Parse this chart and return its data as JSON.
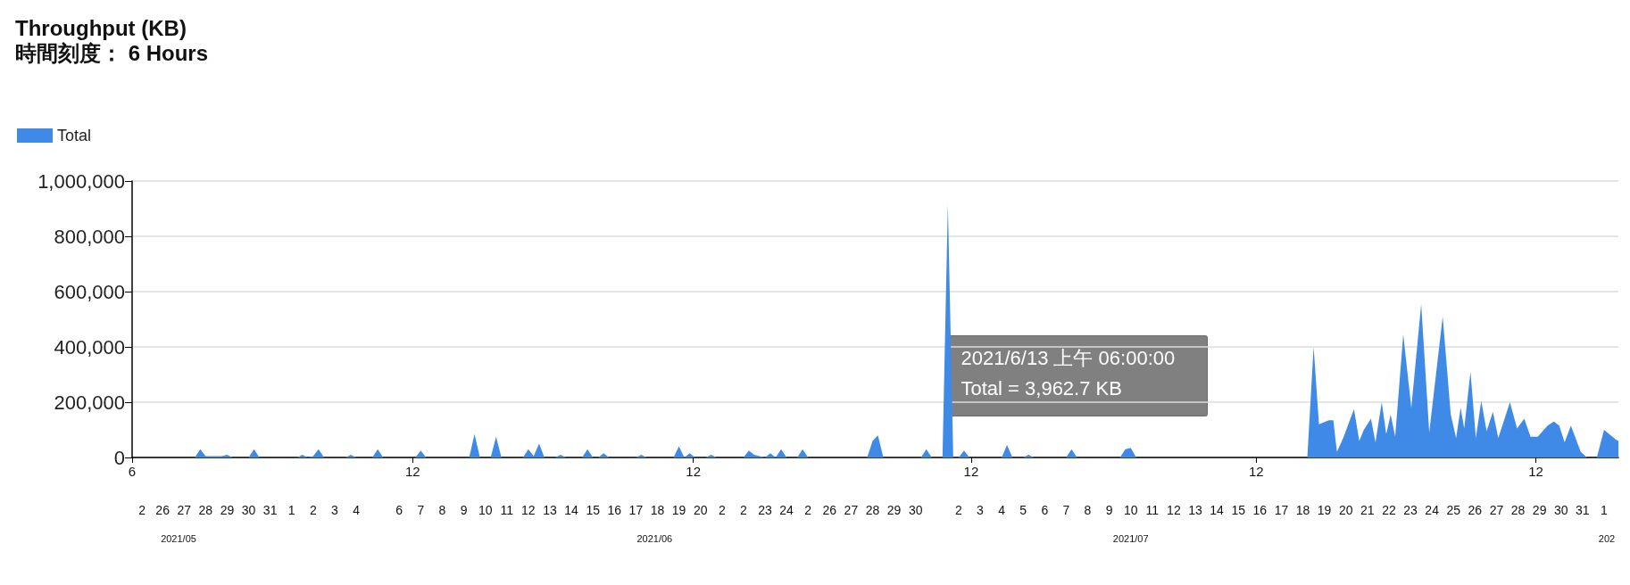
{
  "chart_data": {
    "type": "area",
    "title": "Throughput (KB)",
    "subtitle": "時間刻度： 6 Hours",
    "annotations": [
      "2021/6/13 上午 06:00:00",
      "Total = 3,962.7 KB",
      "2021/05",
      "2021/06",
      "2021/07",
      "202"
    ],
    "legend": "top left",
    "grid": "y",
    "xlim": [
      "2021-05-25T02:00",
      "2021-08-02T04:00"
    ],
    "xticks": [
      {
        "value": "2021-05-25T02:00",
        "label": "6"
      },
      {
        "value": "2021-06-07T03:00",
        "label": "12"
      },
      {
        "value": "2021-06-20T04:00",
        "label": "12"
      },
      {
        "value": "2021-07-03T02:00",
        "label": "12"
      },
      {
        "value": "2021-07-16T08:00",
        "label": "12"
      },
      {
        "value": "2021-07-29T08:00",
        "label": "12"
      }
    ],
    "x2lim": [
      "2021-05-25T02:00",
      "2021-08-02T04:00"
    ],
    "x2ticks": [
      {
        "value": "2021-05-25T13:00",
        "label": "2"
      },
      {
        "value": "2021-05-26T12:00",
        "label": "26"
      },
      {
        "value": "2021-05-27T12:00",
        "label": "27"
      },
      {
        "value": "2021-05-28T12:00",
        "label": "28"
      },
      {
        "value": "2021-05-29T12:00",
        "label": "29"
      },
      {
        "value": "2021-05-30T12:00",
        "label": "30"
      },
      {
        "value": "2021-05-31T12:00",
        "label": "31"
      },
      {
        "value": "2021-06-01T12:00",
        "label": "1"
      },
      {
        "value": "2021-06-02T12:00",
        "label": "2"
      },
      {
        "value": "2021-06-03T12:00",
        "label": "3"
      },
      {
        "value": "2021-06-04T12:00",
        "label": "4"
      },
      {
        "value": "2021-06-06T12:00",
        "label": "6"
      },
      {
        "value": "2021-06-07T12:00",
        "label": "7"
      },
      {
        "value": "2021-06-08T12:00",
        "label": "8"
      },
      {
        "value": "2021-06-09T12:00",
        "label": "9"
      },
      {
        "value": "2021-06-10T12:00",
        "label": "10"
      },
      {
        "value": "2021-06-11T12:00",
        "label": "11"
      },
      {
        "value": "2021-06-12T12:00",
        "label": "12"
      },
      {
        "value": "2021-06-13T12:00",
        "label": "13"
      },
      {
        "value": "2021-06-14T12:00",
        "label": "14"
      },
      {
        "value": "2021-06-15T12:00",
        "label": "15"
      },
      {
        "value": "2021-06-16T12:00",
        "label": "16"
      },
      {
        "value": "2021-06-17T12:00",
        "label": "17"
      },
      {
        "value": "2021-06-18T12:00",
        "label": "18"
      },
      {
        "value": "2021-06-19T12:00",
        "label": "19"
      },
      {
        "value": "2021-06-20T12:00",
        "label": "20"
      },
      {
        "value": "2021-06-21T12:00",
        "label": "2"
      },
      {
        "value": "2021-06-22T12:00",
        "label": "2"
      },
      {
        "value": "2021-06-23T12:00",
        "label": "23"
      },
      {
        "value": "2021-06-24T12:00",
        "label": "24"
      },
      {
        "value": "2021-06-25T12:00",
        "label": "2"
      },
      {
        "value": "2021-06-26T12:00",
        "label": "26"
      },
      {
        "value": "2021-06-27T12:00",
        "label": "27"
      },
      {
        "value": "2021-06-28T12:00",
        "label": "28"
      },
      {
        "value": "2021-06-29T12:00",
        "label": "29"
      },
      {
        "value": "2021-06-30T12:00",
        "label": "30"
      },
      {
        "value": "2021-07-02T12:00",
        "label": "2"
      },
      {
        "value": "2021-07-03T12:00",
        "label": "3"
      },
      {
        "value": "2021-07-04T12:00",
        "label": "4"
      },
      {
        "value": "2021-07-05T12:00",
        "label": "5"
      },
      {
        "value": "2021-07-06T12:00",
        "label": "6"
      },
      {
        "value": "2021-07-07T12:00",
        "label": "7"
      },
      {
        "value": "2021-07-08T12:00",
        "label": "8"
      },
      {
        "value": "2021-07-09T12:00",
        "label": "9"
      },
      {
        "value": "2021-07-10T12:00",
        "label": "10"
      },
      {
        "value": "2021-07-11T12:00",
        "label": "11"
      },
      {
        "value": "2021-07-12T12:00",
        "label": "12"
      },
      {
        "value": "2021-07-13T12:00",
        "label": "13"
      },
      {
        "value": "2021-07-14T12:00",
        "label": "14"
      },
      {
        "value": "2021-07-15T12:00",
        "label": "15"
      },
      {
        "value": "2021-07-16T12:00",
        "label": "16"
      },
      {
        "value": "2021-07-17T12:00",
        "label": "17"
      },
      {
        "value": "2021-07-18T12:00",
        "label": "18"
      },
      {
        "value": "2021-07-19T12:00",
        "label": "19"
      },
      {
        "value": "2021-07-20T12:00",
        "label": "20"
      },
      {
        "value": "2021-07-21T12:00",
        "label": "21"
      },
      {
        "value": "2021-07-22T12:00",
        "label": "22"
      },
      {
        "value": "2021-07-23T12:00",
        "label": "23"
      },
      {
        "value": "2021-07-24T12:00",
        "label": "24"
      },
      {
        "value": "2021-07-25T12:00",
        "label": "25"
      },
      {
        "value": "2021-07-26T12:00",
        "label": "26"
      },
      {
        "value": "2021-07-27T12:00",
        "label": "27"
      },
      {
        "value": "2021-07-28T12:00",
        "label": "28"
      },
      {
        "value": "2021-07-29T12:00",
        "label": "29"
      },
      {
        "value": "2021-07-30T12:00",
        "label": "30"
      },
      {
        "value": "2021-07-31T12:00",
        "label": "31"
      },
      {
        "value": "2021-08-01T12:00",
        "label": "1"
      }
    ],
    "ylim": [
      0,
      1000000
    ],
    "yticks": [
      0,
      {
        "value": 200000,
        "label": "200,000"
      },
      {
        "value": 400000,
        "label": "400,000"
      },
      {
        "value": 600000,
        "label": "600,000"
      },
      {
        "value": 800000,
        "label": "800,000"
      },
      {
        "value": 1000000,
        "label": "1,000,000"
      }
    ],
    "series": [
      {
        "name": "Total",
        "color": "#3f8ae6",
        "x": [
          "2021-05-25T06:00",
          "2021-05-28T00:00",
          "2021-05-28T06:00",
          "2021-05-28T12:00",
          "2021-05-29T06:00",
          "2021-05-29T12:00",
          "2021-05-29T18:00",
          "2021-05-30T12:00",
          "2021-05-30T18:00",
          "2021-05-31T00:00",
          "2021-06-01T18:00",
          "2021-06-02T00:00",
          "2021-06-02T06:00",
          "2021-06-02T12:00",
          "2021-06-02T18:00",
          "2021-06-03T00:00",
          "2021-06-04T00:00",
          "2021-06-04T06:00",
          "2021-06-04T12:00",
          "2021-06-05T06:00",
          "2021-06-05T12:00",
          "2021-06-05T18:00",
          "2021-06-07T06:00",
          "2021-06-07T12:00",
          "2021-06-07T18:00",
          "2021-06-09T18:00",
          "2021-06-10T00:00",
          "2021-06-10T06:00",
          "2021-06-10T18:00",
          "2021-06-11T00:00",
          "2021-06-11T06:00",
          "2021-06-12T06:00",
          "2021-06-12T12:00",
          "2021-06-12T18:00",
          "2021-06-13T00:00",
          "2021-06-13T06:00",
          "2021-06-13T18:00",
          "2021-06-14T00:00",
          "2021-06-14T06:00",
          "2021-06-15T00:00",
          "2021-06-15T06:00",
          "2021-06-15T12:00",
          "2021-06-15T18:00",
          "2021-06-16T00:00",
          "2021-06-16T06:00",
          "2021-06-17T12:00",
          "2021-06-17T18:00",
          "2021-06-18T00:00",
          "2021-06-19T06:00",
          "2021-06-19T12:00",
          "2021-06-19T18:00",
          "2021-06-20T00:00",
          "2021-06-20T06:00",
          "2021-06-20T18:00",
          "2021-06-21T00:00",
          "2021-06-21T06:00",
          "2021-06-22T12:00",
          "2021-06-22T18:00",
          "2021-06-23T00:00",
          "2021-06-23T12:00",
          "2021-06-23T18:00",
          "2021-06-24T00:00",
          "2021-06-24T06:00",
          "2021-06-24T12:00",
          "2021-06-25T00:00",
          "2021-06-25T06:00",
          "2021-06-25T12:00",
          "2021-06-28T06:00",
          "2021-06-28T12:00",
          "2021-06-28T18:00",
          "2021-06-29T00:00",
          "2021-06-30T18:00",
          "2021-07-01T00:00",
          "2021-07-01T06:00",
          "2021-07-01T18:00",
          "2021-07-02T00:00",
          "2021-07-02T06:00",
          "2021-07-02T12:00",
          "2021-07-02T18:00",
          "2021-07-03T00:00",
          "2021-07-04T12:00",
          "2021-07-04T18:00",
          "2021-07-05T00:00",
          "2021-07-05T12:00",
          "2021-07-05T18:00",
          "2021-07-06T00:00",
          "2021-07-07T12:00",
          "2021-07-07T18:00",
          "2021-07-08T00:00",
          "2021-07-10T00:00",
          "2021-07-10T06:00",
          "2021-07-10T12:00",
          "2021-07-10T18:00",
          "2021-07-18T17:00",
          "2021-07-19T00:00",
          "2021-07-19T06:00",
          "2021-07-19T17:00",
          "2021-07-19T22:00",
          "2021-07-20T02:00",
          "2021-07-20T09:00",
          "2021-07-20T21:00",
          "2021-07-21T03:00",
          "2021-07-21T08:00",
          "2021-07-21T16:00",
          "2021-07-21T21:00",
          "2021-07-22T04:00",
          "2021-07-22T09:00",
          "2021-07-22T14:00",
          "2021-07-22T19:00",
          "2021-07-23T04:00",
          "2021-07-23T13:00",
          "2021-07-24T00:00",
          "2021-07-24T09:00",
          "2021-07-25T00:00",
          "2021-07-25T09:00",
          "2021-07-25T15:00",
          "2021-07-25T20:00",
          "2021-07-26T00:00",
          "2021-07-26T07:00",
          "2021-07-26T13:00",
          "2021-07-26T19:00",
          "2021-07-27T01:00",
          "2021-07-27T08:00",
          "2021-07-27T14:00",
          "2021-07-28T03:00",
          "2021-07-28T11:00",
          "2021-07-28T19:00",
          "2021-07-29T02:00",
          "2021-07-29T10:00",
          "2021-07-29T21:00",
          "2021-07-30T04:00",
          "2021-07-30T10:00",
          "2021-07-30T16:00",
          "2021-07-30T23:00",
          "2021-07-31T10:00",
          "2021-07-31T17:00",
          "2021-08-01T04:00",
          "2021-08-01T12:00",
          "2021-08-02T01:00",
          "2021-08-02T04:00"
        ],
        "values": [
          0,
          0,
          30000,
          5000,
          5000,
          10000,
          0,
          0,
          30000,
          0,
          0,
          10000,
          0,
          5000,
          30000,
          0,
          0,
          10000,
          0,
          0,
          30000,
          0,
          0,
          25000,
          0,
          0,
          85000,
          0,
          0,
          75000,
          0,
          0,
          30000,
          5000,
          50000,
          0,
          0,
          10000,
          0,
          0,
          30000,
          0,
          0,
          15000,
          0,
          0,
          10000,
          0,
          0,
          40000,
          0,
          15000,
          0,
          0,
          10000,
          0,
          0,
          25000,
          10000,
          0,
          15000,
          0,
          30000,
          0,
          0,
          30000,
          0,
          0,
          60000,
          80000,
          0,
          0,
          30000,
          0,
          0,
          915000,
          0,
          0,
          25000,
          0,
          0,
          45000,
          0,
          0,
          10000,
          0,
          0,
          30000,
          0,
          0,
          30000,
          35000,
          0,
          0,
          400000,
          120000,
          135000,
          135000,
          20000,
          70000,
          175000,
          60000,
          100000,
          140000,
          55000,
          200000,
          85000,
          155000,
          75000,
          445000,
          180000,
          555000,
          90000,
          510000,
          155000,
          70000,
          180000,
          105000,
          310000,
          70000,
          205000,
          95000,
          165000,
          70000,
          200000,
          105000,
          140000,
          75000,
          75000,
          115000,
          130000,
          115000,
          55000,
          115000,
          20000,
          0,
          0,
          100000,
          65000,
          60000
        ]
      }
    ]
  }
}
